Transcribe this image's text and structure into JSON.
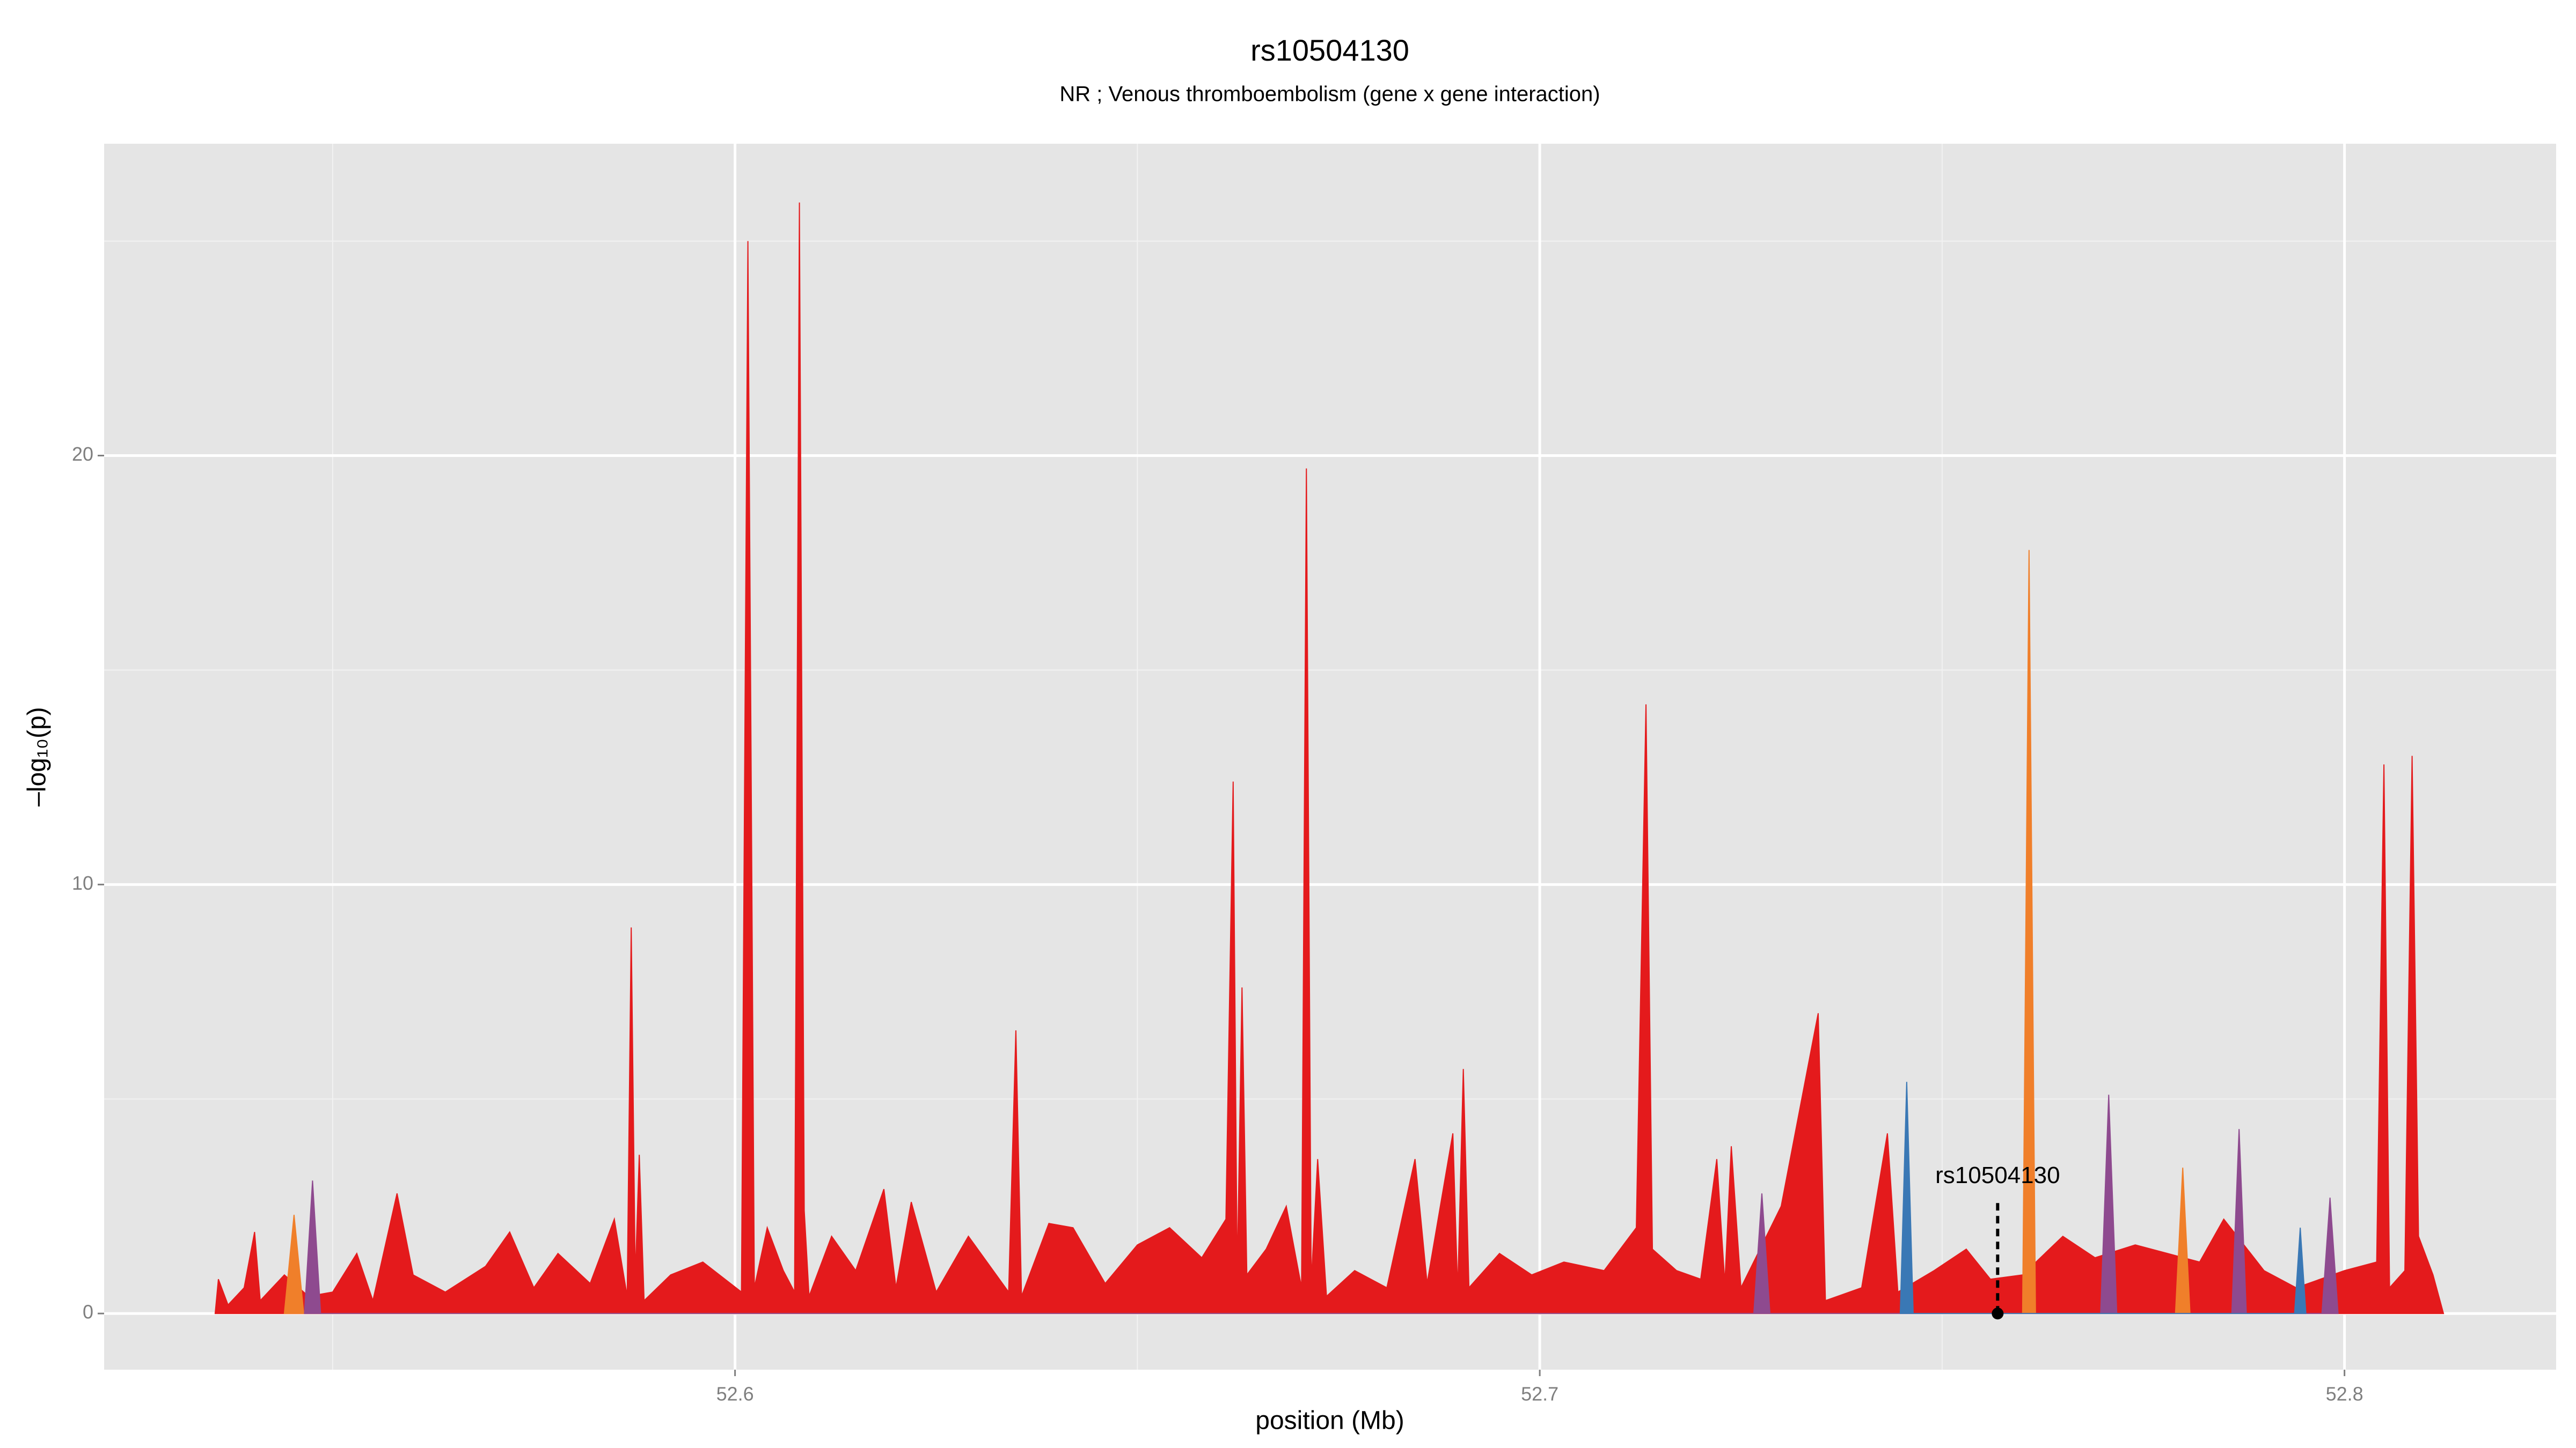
{
  "chart_data": {
    "type": "area",
    "title": "rs10504130",
    "subtitle": "NR ; Venous thromboembolism (gene x gene interaction)",
    "x_label": "position (Mb)",
    "y_label": "–log₁₀(p)",
    "xlim": [
      52.5216,
      52.8263
    ],
    "ylim": [
      -1.31,
      27.27
    ],
    "xticks": [
      52.6,
      52.7,
      52.8
    ],
    "yticks": [
      0,
      10,
      20
    ],
    "grid": true,
    "series": [
      {
        "color": "#e41a1c",
        "x": [
          52.5354,
          52.5358,
          52.537,
          52.539,
          52.5403,
          52.541,
          52.544,
          52.547,
          52.55,
          52.553,
          52.555,
          52.558,
          52.56,
          52.564,
          52.569,
          52.572,
          52.575,
          52.578,
          52.582,
          52.585,
          52.5866,
          52.5871,
          52.5876,
          52.5881,
          52.5887,
          52.592,
          52.596,
          52.6008,
          52.6016,
          52.6024,
          52.604,
          52.606,
          52.6074,
          52.608,
          52.6086,
          52.6092,
          52.612,
          52.615,
          52.6185,
          52.62,
          52.6219,
          52.625,
          52.629,
          52.634,
          52.6349,
          52.6356,
          52.639,
          52.642,
          52.646,
          52.65,
          52.654,
          52.658,
          52.661,
          52.6619,
          52.6624,
          52.663,
          52.6636,
          52.666,
          52.6685,
          52.6704,
          52.671,
          52.6716,
          52.6724,
          52.6735,
          52.677,
          52.681,
          52.6845,
          52.686,
          52.6892,
          52.6898,
          52.6905,
          52.6912,
          52.695,
          52.699,
          52.703,
          52.708,
          52.712,
          52.7132,
          52.714,
          52.717,
          52.72,
          52.722,
          52.723,
          52.7238,
          52.725,
          52.73,
          52.7346,
          52.7355,
          52.74,
          52.7432,
          52.7445,
          52.749,
          52.753,
          52.756,
          52.76,
          52.765,
          52.769,
          52.774,
          52.778,
          52.782,
          52.785,
          52.79,
          52.794,
          52.8,
          52.804,
          52.8049,
          52.8056,
          52.8075,
          52.8084,
          52.8092,
          52.811,
          52.8123
        ],
        "values": [
          0,
          0.8,
          0.2,
          0.6,
          1.9,
          0.3,
          0.9,
          0.4,
          0.5,
          1.4,
          0.3,
          2.8,
          0.9,
          0.5,
          1.1,
          1.9,
          0.6,
          1.4,
          0.7,
          2.2,
          0.4,
          9.0,
          0.8,
          3.7,
          0.3,
          0.9,
          1.2,
          0.5,
          25.0,
          0.6,
          2.0,
          1.0,
          0.5,
          25.9,
          2.4,
          0.4,
          1.8,
          1.0,
          2.9,
          0.6,
          2.6,
          0.5,
          1.8,
          0.5,
          6.6,
          0.4,
          2.1,
          2.0,
          0.7,
          1.6,
          2.0,
          1.3,
          2.2,
          12.4,
          0.8,
          7.6,
          0.9,
          1.5,
          2.5,
          0.6,
          19.7,
          0.7,
          3.6,
          0.4,
          1.0,
          0.6,
          3.6,
          0.7,
          4.2,
          0.5,
          5.7,
          0.6,
          1.4,
          0.9,
          1.2,
          1.0,
          2.0,
          14.2,
          1.5,
          1.0,
          0.8,
          3.6,
          0.7,
          3.9,
          0.6,
          2.5,
          7.0,
          0.3,
          0.6,
          4.2,
          0.5,
          1.0,
          1.5,
          0.8,
          0.9,
          1.8,
          1.3,
          1.6,
          1.4,
          1.2,
          2.2,
          1.0,
          0.6,
          1.0,
          1.2,
          12.8,
          0.6,
          1.0,
          13.0,
          1.8,
          0.9,
          0
        ]
      },
      {
        "color": "#f07f2a",
        "x": [
          52.544,
          52.5452,
          52.5464,
          52.76,
          52.7608,
          52.7616,
          52.779,
          52.7799,
          52.7808
        ],
        "values": [
          0,
          2.3,
          0,
          0,
          17.8,
          0,
          0,
          3.4,
          0
        ]
      },
      {
        "color": "#8e4a8f",
        "x": [
          52.5465,
          52.5475,
          52.5485,
          52.7266,
          52.7276,
          52.7286,
          52.7697,
          52.7707,
          52.7717,
          52.786,
          52.7869,
          52.7878,
          52.7972,
          52.7982,
          52.7992
        ],
        "values": [
          0,
          3.1,
          0,
          0,
          2.8,
          0,
          0,
          5.1,
          0,
          0,
          4.3,
          0,
          0,
          2.7,
          0
        ]
      },
      {
        "color": "#3a78b5",
        "x": [
          52.7448,
          52.7456,
          52.7464,
          52.7938,
          52.7945,
          52.7952
        ],
        "values": [
          0,
          5.4,
          0,
          0,
          2.0,
          0
        ]
      }
    ],
    "annotation": {
      "text": "rs10504130",
      "x": 52.7569,
      "y": 0
    }
  }
}
